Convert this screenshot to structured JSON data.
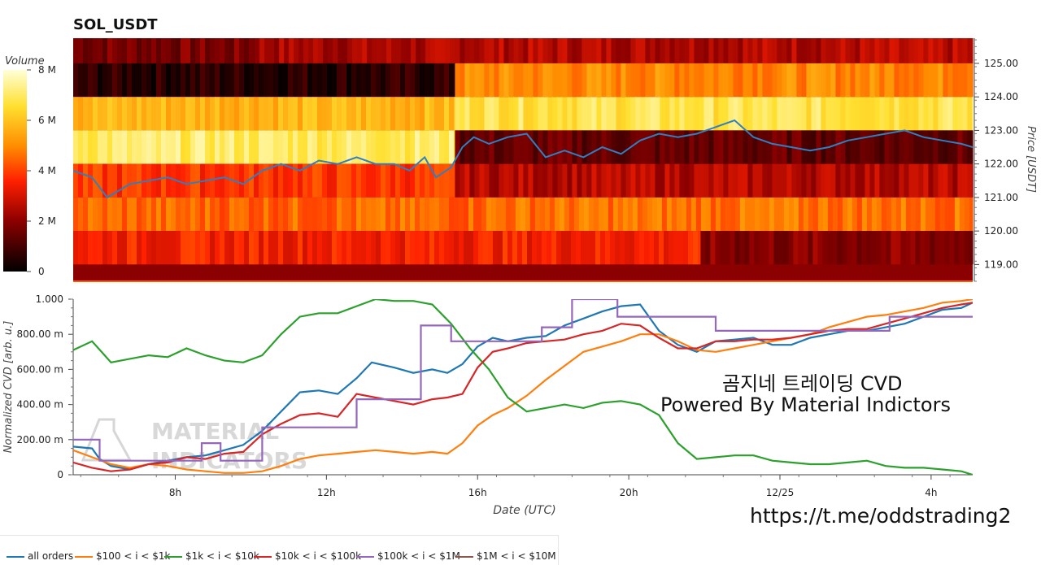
{
  "chart_data": [
    {
      "type": "heatmap",
      "title": "SOL_USDT",
      "xlabel": "",
      "ylabel": "Price [USDT]",
      "colorbar_label": "Volume",
      "colorbar_ticks": [
        "0",
        "2 M",
        "4 M",
        "6 M",
        "8 M"
      ],
      "colorbar_range": [
        0,
        8000000
      ],
      "y_ticks": [
        "119.00",
        "120.00",
        "121.00",
        "122.00",
        "123.00",
        "124.00",
        "125.00"
      ],
      "ylim": [
        118.5,
        125.75
      ],
      "x_range_hours": [
        5.3,
        29.1
      ],
      "price_bands": [
        {
          "band": [
            125,
            126
          ],
          "segments": [
            [
              5.3,
              10.1,
              0.22
            ],
            [
              10.1,
              15.4,
              0.3
            ],
            [
              15.4,
              29.1,
              0.32
            ]
          ]
        },
        {
          "band": [
            124,
            125
          ],
          "segments": [
            [
              5.3,
              15.4,
              0.08
            ],
            [
              15.4,
              29.1,
              0.62
            ]
          ]
        },
        {
          "band": [
            123,
            124
          ],
          "segments": [
            [
              5.3,
              15.4,
              0.72
            ],
            [
              15.4,
              29.1,
              0.85
            ]
          ]
        },
        {
          "band": [
            122,
            123
          ],
          "segments": [
            [
              5.3,
              15.4,
              0.88
            ],
            [
              15.4,
              29.1,
              0.18
            ]
          ]
        },
        {
          "band": [
            121,
            122
          ],
          "segments": [
            [
              5.3,
              15.4,
              0.48
            ],
            [
              15.4,
              29.1,
              0.32
            ]
          ]
        },
        {
          "band": [
            120,
            121
          ],
          "segments": [
            [
              5.3,
              16.1,
              0.56
            ],
            [
              16.1,
              29.1,
              0.58
            ]
          ]
        },
        {
          "band": [
            119,
            120
          ],
          "segments": [
            [
              5.3,
              21.9,
              0.44
            ],
            [
              21.9,
              29.1,
              0.24
            ]
          ]
        }
      ],
      "price_line": {
        "name": "price",
        "hours": [
          5.3,
          5.8,
          6.2,
          6.8,
          7.3,
          7.8,
          8.3,
          8.8,
          9.3,
          9.8,
          10.3,
          10.8,
          11.3,
          11.8,
          12.3,
          12.8,
          13.3,
          13.8,
          14.2,
          14.6,
          14.9,
          15.3,
          15.6,
          15.9,
          16.3,
          16.8,
          17.3,
          17.8,
          18.3,
          18.8,
          19.3,
          19.8,
          20.3,
          20.8,
          21.3,
          21.8,
          22.3,
          22.8,
          23.3,
          23.8,
          24.3,
          24.8,
          25.3,
          25.8,
          26.3,
          26.8,
          27.3,
          27.8,
          28.3,
          28.8,
          29.1
        ],
        "prices": [
          121.8,
          121.6,
          121.0,
          121.4,
          121.5,
          121.6,
          121.4,
          121.5,
          121.6,
          121.4,
          121.8,
          122.0,
          121.8,
          122.1,
          122.0,
          122.2,
          122.0,
          122.0,
          121.8,
          122.2,
          121.6,
          121.9,
          122.5,
          122.8,
          122.6,
          122.8,
          122.9,
          122.2,
          122.4,
          122.2,
          122.5,
          122.3,
          122.7,
          122.9,
          122.8,
          122.9,
          123.1,
          123.3,
          122.8,
          122.6,
          122.5,
          122.4,
          122.5,
          122.7,
          122.8,
          122.9,
          123.0,
          122.8,
          122.7,
          122.6,
          122.5
        ]
      }
    },
    {
      "type": "line",
      "xlabel": "Date (UTC)",
      "ylabel": "Normalized CVD [arb. u.]",
      "ylim": [
        0,
        1.0
      ],
      "y_ticks": [
        "0",
        "200.00 m",
        "400.00 m",
        "600.00 m",
        "800.00 m",
        "1.000"
      ],
      "x_ticks": [
        "8h",
        "12h",
        "16h",
        "20h",
        "12/25",
        "4h"
      ],
      "x_tick_hours": [
        8,
        12,
        16,
        20,
        24,
        28
      ],
      "x_range_hours": [
        5.3,
        29.1
      ],
      "series": [
        {
          "name": "all orders",
          "color": "#1f77b4",
          "x": [
            5.3,
            5.8,
            6.0,
            6.3,
            6.8,
            7.3,
            7.8,
            8.3,
            8.8,
            9.3,
            9.8,
            10.3,
            10.8,
            11.3,
            11.8,
            12.3,
            12.8,
            13.2,
            13.8,
            14.3,
            14.8,
            15.2,
            15.6,
            16.0,
            16.4,
            16.8,
            17.3,
            17.8,
            18.3,
            18.8,
            19.3,
            19.8,
            20.3,
            20.8,
            21.3,
            21.8,
            22.3,
            22.8,
            23.3,
            23.8,
            24.3,
            24.8,
            25.3,
            25.8,
            26.3,
            26.8,
            27.3,
            27.8,
            28.3,
            28.8,
            29.1
          ],
          "y": [
            0.16,
            0.15,
            0.09,
            0.05,
            0.03,
            0.06,
            0.08,
            0.1,
            0.11,
            0.14,
            0.17,
            0.25,
            0.36,
            0.47,
            0.48,
            0.46,
            0.55,
            0.64,
            0.61,
            0.58,
            0.6,
            0.58,
            0.63,
            0.73,
            0.78,
            0.76,
            0.78,
            0.79,
            0.85,
            0.89,
            0.93,
            0.96,
            0.97,
            0.82,
            0.74,
            0.7,
            0.76,
            0.77,
            0.78,
            0.74,
            0.74,
            0.78,
            0.8,
            0.82,
            0.82,
            0.84,
            0.86,
            0.9,
            0.94,
            0.95,
            0.98
          ]
        },
        {
          "name": "$100 < i < $1k",
          "color": "#ff7f0e",
          "x": [
            5.3,
            5.8,
            6.3,
            6.8,
            7.3,
            7.8,
            8.3,
            8.8,
            9.3,
            9.8,
            10.3,
            10.8,
            11.3,
            11.8,
            12.3,
            12.8,
            13.3,
            13.8,
            14.3,
            14.8,
            15.2,
            15.6,
            16.0,
            16.4,
            16.8,
            17.3,
            17.8,
            18.3,
            18.8,
            19.3,
            19.8,
            20.3,
            20.8,
            21.3,
            21.8,
            22.3,
            22.8,
            23.3,
            23.8,
            24.3,
            24.8,
            25.3,
            25.8,
            26.3,
            26.8,
            27.3,
            27.8,
            28.3,
            28.8,
            29.1
          ],
          "y": [
            0.14,
            0.1,
            0.06,
            0.04,
            0.06,
            0.05,
            0.03,
            0.02,
            0.01,
            0.01,
            0.02,
            0.05,
            0.09,
            0.11,
            0.12,
            0.13,
            0.14,
            0.13,
            0.12,
            0.13,
            0.12,
            0.18,
            0.28,
            0.34,
            0.38,
            0.45,
            0.54,
            0.62,
            0.7,
            0.73,
            0.76,
            0.8,
            0.8,
            0.76,
            0.71,
            0.7,
            0.72,
            0.74,
            0.76,
            0.78,
            0.8,
            0.84,
            0.87,
            0.9,
            0.91,
            0.93,
            0.95,
            0.98,
            0.99,
            1.0
          ]
        },
        {
          "name": "$1k < i < $10k",
          "color": "#2ca02c",
          "x": [
            5.3,
            5.8,
            6.3,
            6.8,
            7.3,
            7.8,
            8.3,
            8.8,
            9.3,
            9.8,
            10.3,
            10.8,
            11.3,
            11.8,
            12.3,
            12.8,
            13.3,
            13.8,
            14.3,
            14.8,
            15.3,
            15.8,
            16.3,
            16.8,
            17.3,
            17.8,
            18.3,
            18.8,
            19.3,
            19.8,
            20.3,
            20.8,
            21.3,
            21.8,
            22.3,
            22.8,
            23.3,
            23.8,
            24.3,
            24.8,
            25.3,
            25.8,
            26.3,
            26.8,
            27.3,
            27.8,
            28.3,
            28.8,
            29.1
          ],
          "y": [
            0.71,
            0.76,
            0.64,
            0.66,
            0.68,
            0.67,
            0.72,
            0.68,
            0.65,
            0.64,
            0.68,
            0.8,
            0.9,
            0.92,
            0.92,
            0.96,
            1.0,
            0.99,
            0.99,
            0.97,
            0.86,
            0.72,
            0.6,
            0.44,
            0.36,
            0.38,
            0.4,
            0.38,
            0.41,
            0.42,
            0.4,
            0.34,
            0.18,
            0.09,
            0.1,
            0.11,
            0.11,
            0.08,
            0.07,
            0.06,
            0.06,
            0.07,
            0.08,
            0.05,
            0.04,
            0.04,
            0.03,
            0.02,
            0.0
          ]
        },
        {
          "name": "$10k < i < $100k",
          "color": "#d62728",
          "x": [
            5.3,
            5.8,
            6.3,
            6.8,
            7.3,
            7.8,
            8.3,
            8.8,
            9.3,
            9.8,
            10.3,
            10.8,
            11.3,
            11.8,
            12.3,
            12.8,
            13.3,
            13.8,
            14.3,
            14.8,
            15.2,
            15.6,
            16.0,
            16.4,
            16.8,
            17.3,
            17.8,
            18.3,
            18.8,
            19.3,
            19.8,
            20.3,
            20.8,
            21.3,
            21.8,
            22.3,
            22.8,
            23.3,
            23.8,
            24.3,
            24.8,
            25.3,
            25.8,
            26.3,
            26.8,
            27.3,
            27.8,
            28.3,
            28.8,
            29.1
          ],
          "y": [
            0.07,
            0.04,
            0.02,
            0.03,
            0.06,
            0.07,
            0.1,
            0.09,
            0.12,
            0.13,
            0.23,
            0.29,
            0.34,
            0.35,
            0.33,
            0.46,
            0.44,
            0.42,
            0.4,
            0.43,
            0.44,
            0.46,
            0.61,
            0.7,
            0.72,
            0.75,
            0.76,
            0.77,
            0.8,
            0.82,
            0.86,
            0.85,
            0.78,
            0.72,
            0.72,
            0.76,
            0.76,
            0.77,
            0.77,
            0.78,
            0.8,
            0.82,
            0.83,
            0.83,
            0.86,
            0.89,
            0.92,
            0.95,
            0.97,
            0.98
          ]
        },
        {
          "name": "$100k < i < $1M",
          "color": "#9467bd",
          "x": [
            5.3,
            6.0,
            6.0,
            8.7,
            8.7,
            9.2,
            9.2,
            10.3,
            10.3,
            11.3,
            11.3,
            12.8,
            12.8,
            14.5,
            14.5,
            15.3,
            15.3,
            17.7,
            17.7,
            18.5,
            18.5,
            19.7,
            19.7,
            22.3,
            22.3,
            26.9,
            26.9,
            29.1
          ],
          "y": [
            0.2,
            0.2,
            0.08,
            0.08,
            0.18,
            0.18,
            0.08,
            0.08,
            0.27,
            0.27,
            0.27,
            0.27,
            0.43,
            0.43,
            0.85,
            0.85,
            0.76,
            0.76,
            0.84,
            0.84,
            1.0,
            1.0,
            0.9,
            0.9,
            0.82,
            0.82,
            0.9,
            0.9
          ]
        },
        {
          "name": "$1M < i < $10M",
          "color": "#8c564b",
          "x": [],
          "y": []
        }
      ]
    }
  ],
  "watermark": {
    "line1": "MATERIAL",
    "line2": "INDICATORS"
  },
  "overlay": {
    "title_ko": "곰지네 트레이딩 CVD",
    "powered": "Powered By Material Indictors",
    "url": "https://t.me/oddstrading2"
  },
  "legend": [
    {
      "label": "all orders",
      "color": "#1f77b4"
    },
    {
      "label": "$100 < i < $1k",
      "color": "#ff7f0e"
    },
    {
      "label": "$1k < i < $10k",
      "color": "#2ca02c"
    },
    {
      "label": "$10k < i < $100k",
      "color": "#d62728"
    },
    {
      "label": "$100k < i < $1M",
      "color": "#9467bd"
    },
    {
      "label": "$1M < i < $10M",
      "color": "#8c564b"
    }
  ]
}
